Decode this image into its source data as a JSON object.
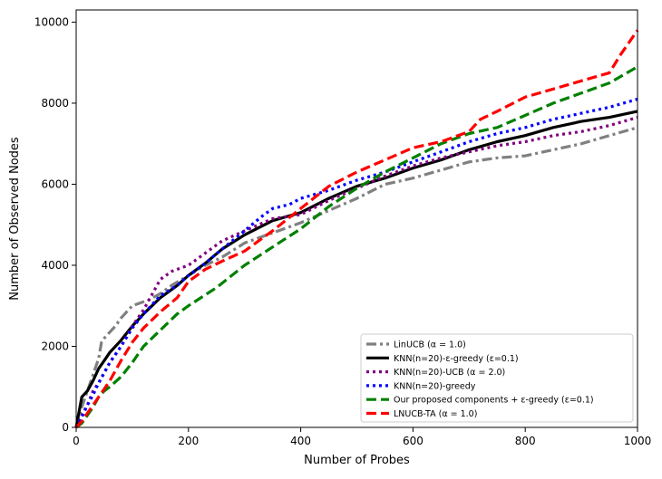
{
  "chart_data": {
    "type": "line",
    "title": "",
    "xlabel": "Number of Probes",
    "ylabel": "Number of Observed Nodes",
    "xlim": [
      0,
      1000
    ],
    "ylim": [
      0,
      10300
    ],
    "xticks": [
      0,
      200,
      400,
      600,
      800,
      1000
    ],
    "yticks": [
      0,
      2000,
      4000,
      6000,
      8000,
      10000
    ],
    "xtick_labels": [
      "0",
      "200",
      "400",
      "600",
      "800",
      "1000"
    ],
    "ytick_labels": [
      "0",
      "2000",
      "4000",
      "6000",
      "8000",
      "10000"
    ],
    "grid": false,
    "legend_position": "lower-right",
    "series": [
      {
        "name": "LinUCB (α = 1.0)",
        "color": "#808080",
        "dash": "dashdot",
        "x": [
          0,
          10,
          20,
          30,
          40,
          45,
          50,
          60,
          70,
          80,
          90,
          100,
          110,
          120,
          130,
          150,
          170,
          200,
          230,
          260,
          300,
          350,
          400,
          450,
          500,
          550,
          600,
          650,
          700,
          750,
          800,
          850,
          900,
          950,
          1000
        ],
        "y": [
          0,
          500,
          900,
          1300,
          1700,
          2100,
          2200,
          2350,
          2500,
          2700,
          2850,
          3000,
          3050,
          3100,
          3150,
          3300,
          3500,
          3750,
          4000,
          4200,
          4550,
          4800,
          5050,
          5350,
          5650,
          6000,
          6150,
          6350,
          6550,
          6650,
          6700,
          6850,
          7000,
          7200,
          7400
        ]
      },
      {
        "name": "KNN(n=20)-ε-greedy (ε=0.1)",
        "color": "#000000",
        "dash": "solid",
        "x": [
          0,
          10,
          20,
          30,
          40,
          50,
          60,
          80,
          100,
          120,
          150,
          180,
          200,
          230,
          260,
          300,
          350,
          400,
          450,
          500,
          550,
          600,
          650,
          700,
          750,
          800,
          850,
          900,
          950,
          1000
        ],
        "y": [
          0,
          750,
          900,
          1150,
          1450,
          1650,
          1850,
          2150,
          2500,
          2800,
          3200,
          3500,
          3750,
          4050,
          4400,
          4750,
          5100,
          5300,
          5650,
          5950,
          6150,
          6400,
          6600,
          6850,
          7050,
          7200,
          7400,
          7550,
          7650,
          7800
        ]
      },
      {
        "name": "KNN(n=20)-UCB (α = 2.0)",
        "color": "#800080",
        "dash": "dotted",
        "x": [
          0,
          10,
          20,
          30,
          40,
          50,
          60,
          80,
          100,
          120,
          150,
          170,
          200,
          230,
          260,
          300,
          350,
          400,
          450,
          500,
          550,
          600,
          650,
          700,
          750,
          800,
          850,
          900,
          950,
          1000
        ],
        "y": [
          0,
          300,
          550,
          900,
          1100,
          1350,
          1600,
          2000,
          2500,
          2900,
          3650,
          3850,
          4000,
          4300,
          4600,
          4850,
          5150,
          5250,
          5600,
          5900,
          6200,
          6450,
          6650,
          6800,
          6950,
          7050,
          7200,
          7300,
          7450,
          7650
        ]
      },
      {
        "name": "KNN(n=20)-greedy",
        "color": "#0000ff",
        "dash": "dotted",
        "x": [
          0,
          10,
          20,
          30,
          40,
          50,
          60,
          80,
          100,
          120,
          150,
          180,
          200,
          230,
          260,
          300,
          330,
          350,
          380,
          400,
          450,
          500,
          550,
          600,
          650,
          700,
          750,
          800,
          850,
          900,
          950,
          1000
        ],
        "y": [
          0,
          250,
          550,
          800,
          1100,
          1350,
          1600,
          2000,
          2450,
          2800,
          3250,
          3500,
          3750,
          4050,
          4400,
          4850,
          5200,
          5400,
          5500,
          5650,
          5850,
          6100,
          6300,
          6550,
          6800,
          7050,
          7250,
          7400,
          7600,
          7750,
          7900,
          8100
        ]
      },
      {
        "name": "Our proposed components + ε-greedy (ε=0.1)",
        "color": "#008000",
        "dash": "dashed",
        "x": [
          0,
          10,
          20,
          30,
          40,
          50,
          60,
          80,
          100,
          120,
          150,
          180,
          200,
          250,
          300,
          350,
          400,
          450,
          500,
          550,
          600,
          650,
          700,
          750,
          800,
          850,
          900,
          950,
          1000
        ],
        "y": [
          0,
          100,
          300,
          500,
          750,
          900,
          1000,
          1250,
          1600,
          2000,
          2400,
          2800,
          3000,
          3450,
          4000,
          4450,
          4900,
          5450,
          5900,
          6300,
          6650,
          7000,
          7250,
          7400,
          7700,
          8000,
          8250,
          8500,
          8900
        ]
      },
      {
        "name": "LNUCB-TA (α = 1.0)",
        "color": "#ff0000",
        "dash": "dashed",
        "x": [
          0,
          10,
          20,
          30,
          40,
          50,
          60,
          80,
          100,
          120,
          150,
          180,
          200,
          230,
          260,
          300,
          350,
          400,
          450,
          500,
          550,
          600,
          650,
          700,
          720,
          750,
          800,
          850,
          900,
          950,
          970,
          1000
        ],
        "y": [
          0,
          150,
          350,
          550,
          750,
          950,
          1150,
          1650,
          2100,
          2450,
          2850,
          3200,
          3600,
          3900,
          4100,
          4350,
          4850,
          5400,
          5950,
          6300,
          6600,
          6900,
          7050,
          7300,
          7600,
          7800,
          8150,
          8350,
          8550,
          8750,
          9200,
          9800
        ]
      }
    ]
  }
}
